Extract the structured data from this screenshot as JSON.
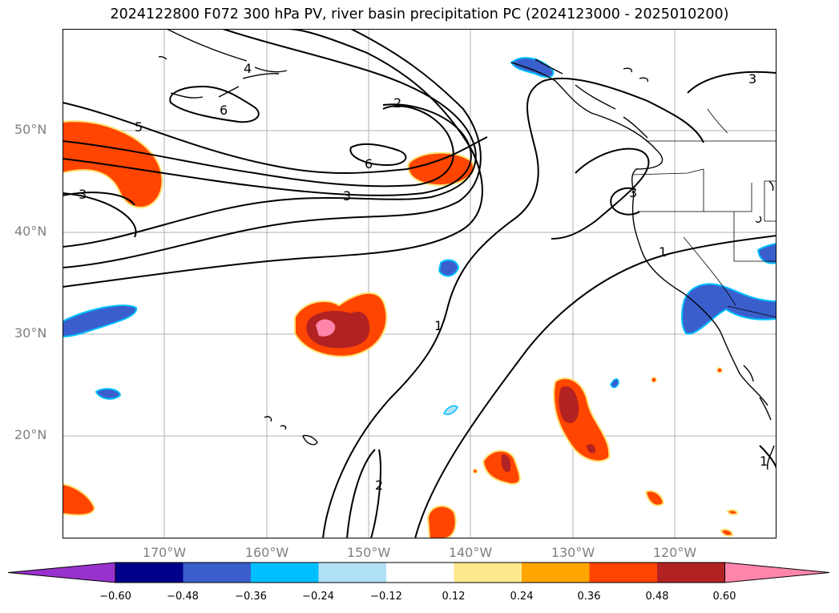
{
  "title": "2024122800 F072 300 hPa PV, river basin precipitation PC (2024123000 - 2025010200)",
  "lat_labels": [
    "50°N",
    "40°N",
    "30°N",
    "20°N"
  ],
  "lon_labels": [
    "170°W",
    "160°W",
    "150°W",
    "140°W",
    "130°W",
    "120°W"
  ],
  "contour_labels": [
    "5",
    "6",
    "4",
    "2",
    "6",
    "3",
    "3",
    "3",
    "3",
    "1",
    "1",
    "2",
    "1"
  ],
  "colorbar": {
    "ticks": [
      "−0.60",
      "−0.48",
      "−0.36",
      "−0.24",
      "−0.12",
      "0.12",
      "0.24",
      "0.36",
      "0.48",
      "0.60"
    ],
    "colors": [
      "#9932cc",
      "#00008b",
      "#3a5fcd",
      "#00bfff",
      "#b0e0f6",
      "#ffffff",
      "#ffe88c",
      "#ffa500",
      "#ff4500",
      "#b22222",
      "#ff86aa"
    ]
  }
}
